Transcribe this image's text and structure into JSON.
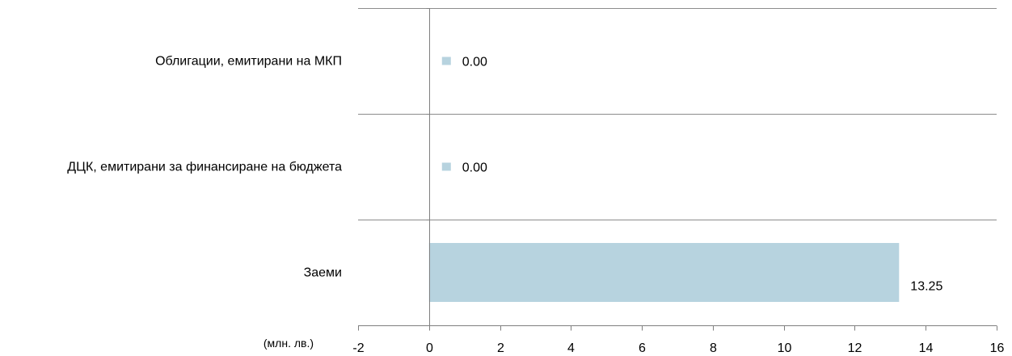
{
  "chart_data": {
    "type": "bar",
    "orientation": "horizontal",
    "categories": [
      "Облигации, емитирани на МКП",
      "ДЦК, емитирани за финансиране на бюджета",
      "Заеми"
    ],
    "values": [
      0.0,
      0.0,
      13.25
    ],
    "data_labels": [
      "0.00",
      "0.00",
      "13.25"
    ],
    "xlim": [
      -2,
      16
    ],
    "x_ticks": [
      -2,
      0,
      2,
      4,
      6,
      8,
      10,
      12,
      14,
      16
    ],
    "unit_label": "(млн. лв.)",
    "title": "",
    "xlabel": "",
    "ylabel": "",
    "grid": "horizontal category separators",
    "legend": "none",
    "colors": {
      "bar": "#b7d3df",
      "grid": "#8c8c8c",
      "axis": "#7f7f7f",
      "text": "#000000"
    }
  }
}
